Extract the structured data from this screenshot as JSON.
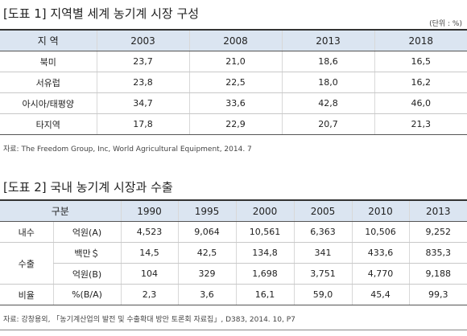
{
  "table1": {
    "title": "[도표 1] 지역별 세계 농기계 시장 구성",
    "unit": "(단위 : %)",
    "header": [
      "지 역",
      "2003",
      "2008",
      "2013",
      "2018"
    ],
    "rows": [
      [
        "북미",
        "23,7",
        "21,0",
        "18,6",
        "16,5"
      ],
      [
        "서유럽",
        "23,8",
        "22,5",
        "18,0",
        "16,2"
      ],
      [
        "아시아/태평양",
        "34,7",
        "33,6",
        "42,8",
        "46,0"
      ],
      [
        "타지역",
        "17,8",
        "22,9",
        "20,7",
        "21,3"
      ]
    ],
    "source": "자료: The Freedom Group, Inc, World Agricultural Equipment, 2014. 7"
  },
  "table2": {
    "title": "[도표 2] 국내 농기계 시장과 수출",
    "header": [
      "구분",
      "1990",
      "1995",
      "2000",
      "2005",
      "2010",
      "2013"
    ],
    "groups": [
      {
        "label": "내수",
        "rows": [
          {
            "unit": "억원(A)",
            "values": [
              "4,523",
              "9,064",
              "10,561",
              "6,363",
              "10,506",
              "9,252"
            ]
          }
        ]
      },
      {
        "label": "수출",
        "rows": [
          {
            "unit": "백만＄",
            "values": [
              "14,5",
              "42,5",
              "134,8",
              "341",
              "433,6",
              "835,3"
            ]
          },
          {
            "unit": "억원(B)",
            "values": [
              "104",
              "329",
              "1,698",
              "3,751",
              "4,770",
              "9,188"
            ]
          }
        ]
      },
      {
        "label": "비율",
        "rows": [
          {
            "unit": "%(B/A)",
            "values": [
              "2,3",
              "3,6",
              "16,1",
              "59,0",
              "45,4",
              "99,3"
            ]
          }
        ]
      }
    ],
    "source": "자료: 강창용외, 「농기계산업의 발전 및 수출확대 방안 토론회 자료집」, D383, 2014. 10, P7"
  }
}
